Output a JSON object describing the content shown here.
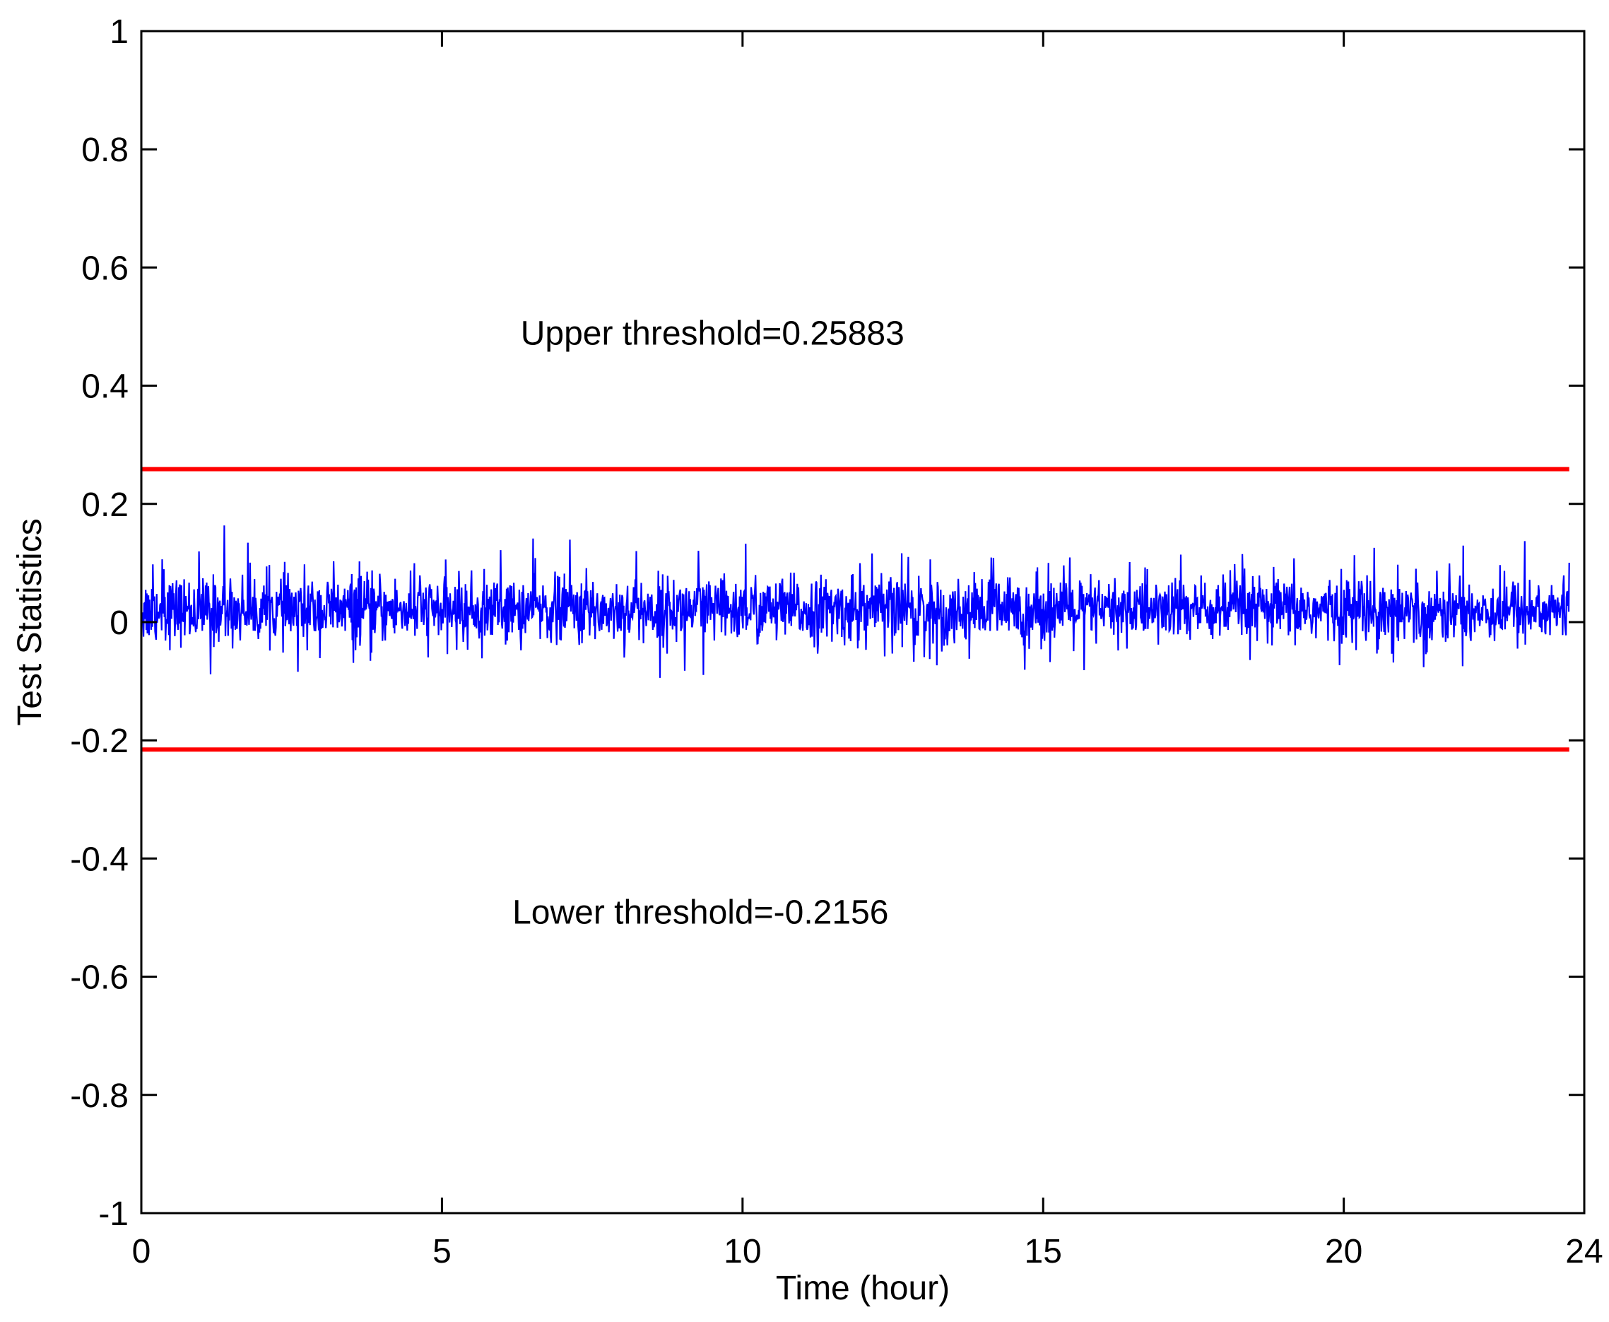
{
  "chart_data": {
    "type": "line",
    "title": "",
    "xlabel": "Time (hour)",
    "ylabel": "Test Statistics",
    "xlim": [
      0,
      24
    ],
    "ylim": [
      -1,
      1
    ],
    "xticks": [
      0,
      5,
      10,
      15,
      20,
      24
    ],
    "xtick_labels": [
      "0",
      "5",
      "10",
      "15",
      "20",
      "24"
    ],
    "yticks": [
      1,
      0.8,
      0.6,
      0.4,
      0.2,
      0,
      -0.2,
      -0.4,
      -0.6,
      -0.8,
      -1
    ],
    "ytick_labels": [
      "1",
      "0.8",
      "0.6",
      "0.4",
      "0.2",
      "0",
      "-0.2",
      "-0.4",
      "-0.6",
      "-0.8",
      "-1"
    ],
    "grid": false,
    "x_end": 23.75,
    "signal": {
      "color": "#0000ff",
      "mean": 0.02,
      "min": -0.11,
      "max": 0.17,
      "x": [
        0,
        1.25,
        2.5,
        3.75,
        5,
        6.25,
        7.5,
        8.75,
        10,
        11.25,
        12.5,
        13.75,
        15,
        16.25,
        17.5,
        18.75,
        20,
        21.25,
        22.5,
        23.75
      ],
      "y_upper": [
        0.09,
        0.17,
        0.14,
        0.1,
        0.11,
        0.16,
        0.14,
        0.13,
        0.14,
        0.11,
        0.12,
        0.11,
        0.12,
        0.1,
        0.13,
        0.11,
        0.14,
        0.12,
        0.15,
        0.12
      ],
      "y_lower": [
        -0.07,
        -0.1,
        -0.09,
        -0.08,
        -0.07,
        -0.07,
        -0.07,
        -0.1,
        -0.09,
        -0.07,
        -0.07,
        -0.08,
        -0.09,
        -0.1,
        -0.08,
        -0.11,
        -0.08,
        -0.08,
        -0.1,
        -0.07
      ]
    },
    "thresholds": [
      {
        "name": "Upper threshold",
        "value": 0.25883,
        "color": "#ff0000"
      },
      {
        "name": "Lower threshold",
        "value": -0.2156,
        "color": "#ff0000"
      }
    ],
    "annotations": [
      {
        "text": "Upper threshold=0.25883",
        "x": 9.5,
        "y": 0.49
      },
      {
        "text": "Lower threshold=-0.2156",
        "x": 9.3,
        "y": -0.49
      }
    ]
  }
}
